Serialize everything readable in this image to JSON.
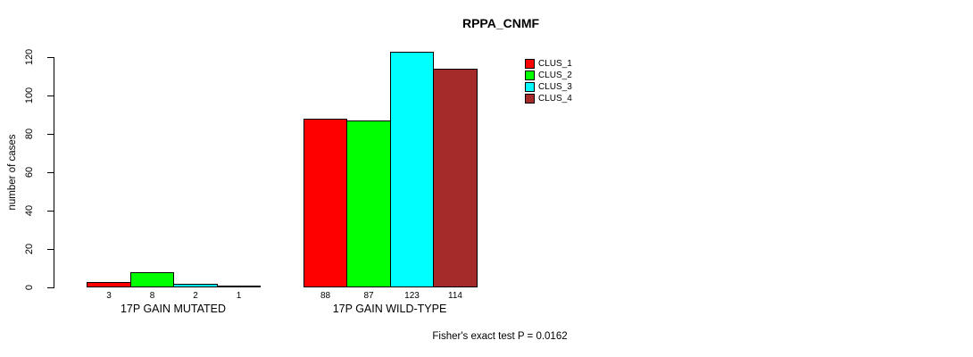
{
  "chart_data": {
    "type": "bar",
    "title": "RPPA_CNMF",
    "xlabel": "",
    "ylabel": "number of cases",
    "categories": [
      "17P GAIN MUTATED",
      "17P GAIN WILD-TYPE"
    ],
    "series": [
      {
        "name": "CLUS_1",
        "color": "#ff0000",
        "values": [
          3,
          88
        ]
      },
      {
        "name": "CLUS_2",
        "color": "#00ff00",
        "values": [
          8,
          87
        ]
      },
      {
        "name": "CLUS_3",
        "color": "#00ffff",
        "values": [
          2,
          123
        ]
      },
      {
        "name": "CLUS_4",
        "color": "#a52a2a",
        "values": [
          1,
          114
        ]
      }
    ],
    "bar_value_labels": [
      [
        "3",
        "8",
        "2",
        "1"
      ],
      [
        "88",
        "87",
        "123",
        "114"
      ]
    ],
    "ylim": [
      0,
      120
    ],
    "yticks": [
      0,
      20,
      40,
      60,
      80,
      100,
      120
    ],
    "grid": false,
    "legend_position": "top-right",
    "legend_entries": [
      "CLUS_1",
      "CLUS_2",
      "CLUS_3",
      "CLUS_4"
    ],
    "annotation": "Fisher's exact test P = 0.0162",
    "colors": {
      "background": "#ffffff",
      "bar_border": "#000000",
      "axis": "#000000",
      "text": "#000000"
    }
  }
}
